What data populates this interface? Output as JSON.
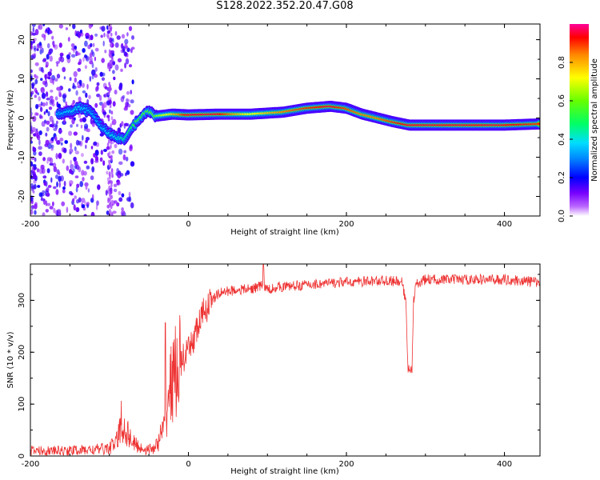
{
  "title": "S128.2022.352.20.47.G08",
  "chart_data": [
    {
      "type": "heatmap",
      "xlabel": "Height of straight line (km)",
      "ylabel": "Frequency (Hz)",
      "xlim": [
        -200,
        445
      ],
      "ylim": [
        -25,
        24
      ],
      "x_ticks": [
        -200,
        0,
        200,
        400
      ],
      "y_ticks": [
        -20,
        -10,
        0,
        10,
        20
      ],
      "colorbar": {
        "label": "Normalized spectral amplitude",
        "range": [
          0,
          1
        ],
        "ticks": [
          "0.0",
          "0.2",
          "0.4",
          "0.6",
          "0.8"
        ]
      },
      "ridge": {
        "x": [
          -160,
          -140,
          -125,
          -110,
          -100,
          -90,
          -80,
          -70,
          -60,
          -50,
          -40,
          -20,
          0,
          40,
          80,
          120,
          150,
          180,
          200,
          220,
          240,
          260,
          280,
          320,
          360,
          400,
          445
        ],
        "frequency": [
          1,
          2.5,
          2,
          -2,
          -4,
          -5,
          -5.5,
          -2,
          0,
          2,
          0.5,
          1,
          0.8,
          1,
          1,
          1.5,
          2.5,
          3,
          2.5,
          1,
          0,
          -1,
          -1.8,
          -1.8,
          -1.8,
          -1.8,
          -1.5
        ],
        "amplitude": [
          0.35,
          0.4,
          0.35,
          0.35,
          0.4,
          0.4,
          0.45,
          0.5,
          0.55,
          0.55,
          0.6,
          0.75,
          0.95,
          0.95,
          0.7,
          0.85,
          0.9,
          0.95,
          0.9,
          0.85,
          0.85,
          0.9,
          0.95,
          0.95,
          0.95,
          0.95,
          0.9
        ]
      }
    },
    {
      "type": "line",
      "xlabel": "Height of straight line (km)",
      "ylabel": "SNR (10 * v/v)",
      "xlim": [
        -200,
        445
      ],
      "ylim": [
        0,
        370
      ],
      "x_ticks": [
        -200,
        0,
        200,
        400
      ],
      "y_ticks": [
        0,
        100,
        200,
        300
      ],
      "series": [
        {
          "color": "#ee3333",
          "x": [
            -200,
            -160,
            -120,
            -100,
            -90,
            -85,
            -80,
            -75,
            -70,
            -60,
            -50,
            -40,
            -30,
            -25,
            -20,
            -10,
            0,
            10,
            20,
            30,
            40,
            60,
            80,
            95,
            100,
            110,
            150,
            200,
            250,
            270,
            275,
            278,
            283,
            285,
            288,
            300,
            350,
            400,
            445
          ],
          "y": [
            10,
            10,
            12,
            15,
            30,
            60,
            50,
            40,
            25,
            15,
            12,
            20,
            60,
            120,
            150,
            180,
            200,
            240,
            280,
            300,
            315,
            320,
            322,
            330,
            320,
            325,
            330,
            335,
            338,
            335,
            300,
            170,
            165,
            300,
            330,
            340,
            340,
            340,
            335
          ]
        }
      ]
    }
  ]
}
